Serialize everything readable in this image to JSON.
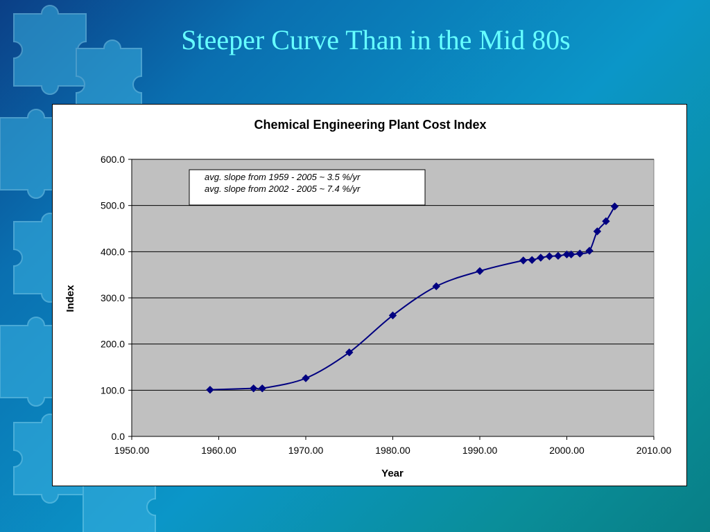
{
  "slide": {
    "title": "Steeper Curve Than in the Mid 80s",
    "colors": {
      "title": "#66ffff",
      "background": "#0b96c8"
    }
  },
  "chart_data": {
    "type": "scatter",
    "title": "Chemical Engineering Plant Cost Index",
    "xlabel": "Year",
    "ylabel": "Index",
    "xlim": [
      1950,
      2010
    ],
    "ylim": [
      0,
      600
    ],
    "x_ticks": [
      "1950.00",
      "1960.00",
      "1970.00",
      "1980.00",
      "1990.00",
      "2000.00",
      "2010.00"
    ],
    "y_ticks": [
      "0.0",
      "100.0",
      "200.0",
      "300.0",
      "400.0",
      "500.0",
      "600.0"
    ],
    "grid": true,
    "plot_background": "#c0c0c0",
    "marker": "diamond",
    "series": [
      {
        "color": "#000080",
        "smoothed_line": true,
        "x": [
          1959,
          1964,
          1965,
          1970,
          1975,
          1980,
          1985,
          1990,
          1995,
          1996,
          1997,
          1998,
          1999,
          2000,
          2000.5,
          2001.5,
          2002.6,
          2003.5,
          2004.5,
          2005.5
        ],
        "y": [
          101,
          104,
          104,
          126,
          182,
          262,
          325,
          358,
          381,
          382,
          387,
          390,
          391,
          394,
          394,
          396,
          402,
          444,
          466,
          498
        ]
      }
    ],
    "annotations": [
      "avg. slope from 1959 - 2005 ~ 3.5 %/yr",
      "avg. slope from 2002 - 2005 ~ 7.4 %/yr"
    ]
  }
}
